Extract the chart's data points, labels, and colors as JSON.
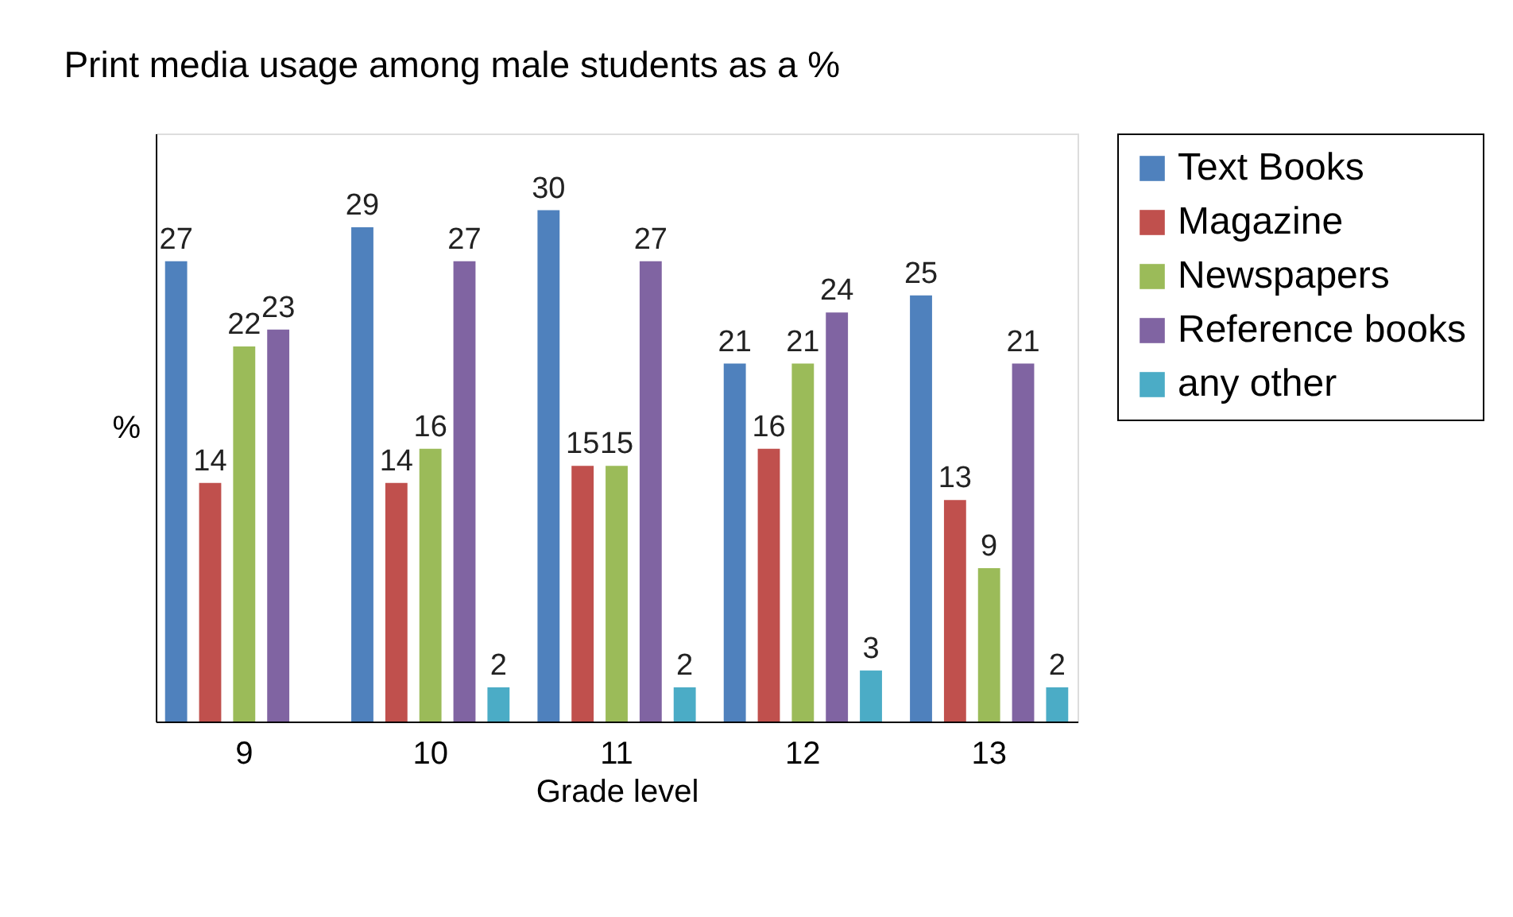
{
  "chart_data": {
    "type": "bar",
    "title": "Print media usage among male students as a %",
    "xlabel": "Grade level",
    "ylabel": "%",
    "categories": [
      "9",
      "10",
      "11",
      "12",
      "13"
    ],
    "series": [
      {
        "name": "Text Books",
        "color": "#4f81bd",
        "values": [
          27,
          29,
          30,
          21,
          25
        ]
      },
      {
        "name": "Magazine",
        "color": "#c0504d",
        "values": [
          14,
          14,
          15,
          16,
          13
        ]
      },
      {
        "name": "Newspapers",
        "color": "#9bbb59",
        "values": [
          22,
          16,
          15,
          21,
          9
        ]
      },
      {
        "name": "Reference books",
        "color": "#8064a2",
        "values": [
          23,
          27,
          27,
          24,
          21
        ]
      },
      {
        "name": "any other",
        "color": "#4bacc6",
        "values": [
          null,
          2,
          2,
          3,
          2
        ]
      }
    ],
    "data_labels": true,
    "legend": "right",
    "grid": false,
    "tick_labels": "x"
  }
}
